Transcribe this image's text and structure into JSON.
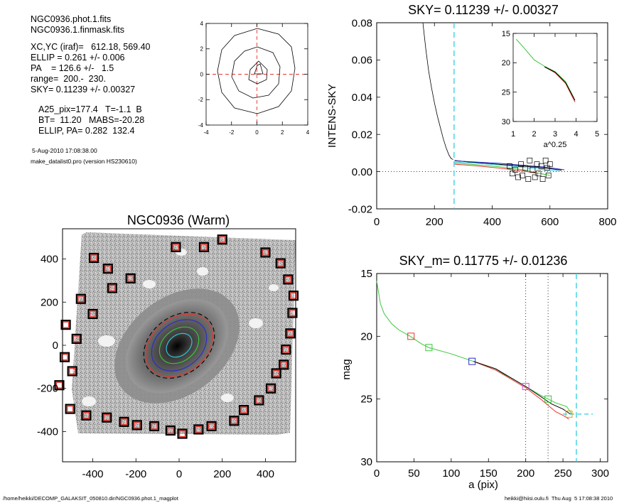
{
  "info_block": {
    "line1": "NGC0936.phot.1.fits",
    "line2": "NGC0936.1.finmask.fits",
    "line3": "XC,YC (iraf)=   612.18, 569.40",
    "line4": "ELLIP = 0.261 +/- 0.006",
    "line5": "PA    = 126.6 +/-   1.5",
    "line6": "range=  200.-  230.",
    "line7": "SKY= 0.11239 +/- 0.00327",
    "line8": "A25_pix=177.4   T=-1.1  B",
    "line9": "BT=  11.20   MABS=-20.28",
    "line10": "ELLIP, PA= 0.282  132.4",
    "timestamp": "5-Aug-2010 17:08:38.00",
    "program": "make_datalist0.pro (version HS230610)"
  },
  "footer": {
    "path": "/home/heikki/DECOMP_GALAKSIT_050810.dir/NGC0936.phot.1_magplot",
    "user_date": "heikki@hiisi.oulu.fi  Thu Aug  5 17:08:38 2010"
  },
  "colors": {
    "red": "#e8332b",
    "green": "#3bc83b",
    "blue": "#2a2ad0",
    "cyan": "#2ecfe0",
    "magenta": "#d050d0",
    "black": "#000000",
    "gray": "#9a9a9a"
  },
  "chart_data": [
    {
      "id": "contour",
      "type": "contour",
      "title": "",
      "xticks": [
        "-4",
        "-2",
        "0",
        "2",
        "4"
      ],
      "yticks": [
        "-4",
        "-2",
        "0",
        "2",
        "4"
      ],
      "xlim": [
        -4,
        4
      ],
      "ylim": [
        -4,
        4
      ]
    },
    {
      "id": "sky",
      "type": "line",
      "title": "SKY= 0.11239 +/- 0.00327",
      "xlabel": "",
      "ylabel": "INTENS-SKY",
      "xlim": [
        0,
        800
      ],
      "ylim": [
        -0.02,
        0.08
      ],
      "xticks": [
        "0",
        "200",
        "400",
        "600",
        "800"
      ],
      "yticks": [
        "-0.02",
        "0.00",
        "0.02",
        "0.04",
        "0.06",
        "0.08"
      ],
      "range_vline": 268,
      "profile": [
        [
          160,
          0.08
        ],
        [
          170,
          0.066
        ],
        [
          180,
          0.054
        ],
        [
          190,
          0.045
        ],
        [
          200,
          0.037
        ],
        [
          210,
          0.03
        ],
        [
          220,
          0.024
        ],
        [
          230,
          0.018
        ],
        [
          240,
          0.013
        ],
        [
          250,
          0.009
        ],
        [
          258,
          0.007
        ],
        [
          265,
          0.0065
        ]
      ],
      "series": [
        {
          "color": "black",
          "values": [
            [
              270,
              0.006
            ],
            [
              330,
              0.005
            ],
            [
              400,
              0.0042
            ],
            [
              460,
              0.0035
            ],
            [
              520,
              0.0028
            ],
            [
              580,
              0.002
            ],
            [
              640,
              0.0008
            ]
          ]
        },
        {
          "color": "blue",
          "values": [
            [
              270,
              0.0058
            ],
            [
              340,
              0.0052
            ],
            [
              420,
              0.0045
            ],
            [
              500,
              0.0035
            ],
            [
              580,
              0.0025
            ],
            [
              650,
              0.001
            ]
          ]
        },
        {
          "color": "cyan",
          "values": [
            [
              270,
              0.0052
            ],
            [
              340,
              0.0046
            ],
            [
              420,
              0.0036
            ],
            [
              500,
              0.0024
            ],
            [
              580,
              0.001
            ],
            [
              630,
              0.0003
            ]
          ]
        },
        {
          "color": "green",
          "values": [
            [
              270,
              0.0046
            ],
            [
              340,
              0.0038
            ],
            [
              420,
              0.0027
            ],
            [
              500,
              0.0012
            ],
            [
              560,
              -0.0008
            ],
            [
              600,
              -0.002
            ]
          ]
        },
        {
          "color": "red",
          "values": [
            [
              270,
              0.004
            ],
            [
              340,
              0.0032
            ],
            [
              420,
              0.002
            ],
            [
              500,
              0.0005
            ],
            [
              560,
              -0.001
            ]
          ]
        }
      ],
      "squares": [
        [
          460,
          0.003
        ],
        [
          470,
          -0.001
        ],
        [
          480,
          0.001
        ],
        [
          490,
          -0.003
        ],
        [
          500,
          0.004
        ],
        [
          505,
          -0.002
        ],
        [
          515,
          0.002
        ],
        [
          525,
          -0.004
        ],
        [
          530,
          0.006
        ],
        [
          540,
          0.001
        ],
        [
          548,
          -0.003
        ],
        [
          555,
          0.004
        ],
        [
          560,
          -0.001
        ],
        [
          570,
          0.003
        ],
        [
          575,
          -0.004
        ],
        [
          585,
          0.006
        ],
        [
          590,
          0.002
        ],
        [
          595,
          -0.002
        ],
        [
          600,
          0.004
        ]
      ],
      "inset": {
        "xlabel": "a^0.25",
        "xlim": [
          1,
          5
        ],
        "ylim": [
          15,
          30
        ],
        "xticks": [
          "1",
          "2",
          "3",
          "4",
          "5"
        ],
        "yticks": [
          "15",
          "20",
          "25",
          "30"
        ],
        "series": [
          {
            "color": "green",
            "values": [
              [
                1.15,
                16.0
              ],
              [
                1.5,
                17.4
              ],
              [
                2.0,
                19.5
              ],
              [
                2.5,
                20.6
              ],
              [
                3.0,
                21.5
              ],
              [
                3.5,
                23.2
              ],
              [
                3.9,
                26.0
              ]
            ]
          },
          {
            "color": "red",
            "values": [
              [
                2.5,
                20.7
              ],
              [
                3.0,
                21.7
              ],
              [
                3.5,
                23.5
              ],
              [
                3.95,
                26.7
              ]
            ]
          },
          {
            "color": "black",
            "values": [
              [
                2.5,
                20.7
              ],
              [
                3.0,
                21.6
              ],
              [
                3.5,
                23.4
              ],
              [
                3.95,
                26.4
              ]
            ]
          }
        ]
      }
    },
    {
      "id": "image",
      "type": "image",
      "title": "NGC0936 (Warm)",
      "xlim": [
        -540,
        540
      ],
      "ylim": [
        -540,
        540
      ],
      "xticks": [
        "-400",
        "-200",
        "0",
        "200",
        "400"
      ],
      "yticks": [
        "-400",
        "-200",
        "0",
        "200",
        "400"
      ],
      "sky_boxes": [
        [
          -15,
          455
        ],
        [
          -395,
          405
        ],
        [
          -330,
          355
        ],
        [
          -225,
          310
        ],
        [
          -310,
          265
        ],
        [
          -455,
          215
        ],
        [
          -400,
          145
        ],
        [
          -525,
          95
        ],
        [
          -475,
          30
        ],
        [
          -530,
          -55
        ],
        [
          -495,
          -120
        ],
        [
          -555,
          -185
        ],
        [
          -505,
          -295
        ],
        [
          -430,
          -325
        ],
        [
          -335,
          -335
        ],
        [
          -255,
          -355
        ],
        [
          -195,
          -370
        ],
        [
          -115,
          -375
        ],
        [
          -40,
          -395
        ],
        [
          15,
          -410
        ],
        [
          90,
          -390
        ],
        [
          150,
          -375
        ],
        [
          255,
          -350
        ],
        [
          300,
          -300
        ],
        [
          370,
          -255
        ],
        [
          425,
          -200
        ],
        [
          450,
          -130
        ],
        [
          485,
          -90
        ],
        [
          495,
          -20
        ],
        [
          515,
          55
        ],
        [
          525,
          150
        ],
        [
          530,
          230
        ],
        [
          505,
          305
        ],
        [
          470,
          380
        ],
        [
          400,
          430
        ],
        [
          200,
          490
        ],
        [
          115,
          455
        ]
      ],
      "isophotes": [
        {
          "color": "cyan",
          "a": 65,
          "b": 48
        },
        {
          "color": "green",
          "a": 100,
          "b": 74
        },
        {
          "color": "blue",
          "a": 140,
          "b": 104
        },
        {
          "color": "red",
          "a": 170,
          "b": 126
        },
        {
          "color": "black",
          "a": 180,
          "b": 133
        }
      ]
    },
    {
      "id": "mag",
      "type": "line",
      "title": "SKY_m=  0.11775 +/- 0.01236",
      "xlabel": "a (pix)",
      "ylabel": "mag",
      "xlim": [
        0,
        310
      ],
      "ylim": [
        15,
        30
      ],
      "xticks": [
        "0",
        "50",
        "100",
        "150",
        "200",
        "250",
        "300"
      ],
      "yticks": [
        "15",
        "20",
        "25",
        "30"
      ],
      "dotted_vlines": [
        200,
        230
      ],
      "dashed_vline": 268,
      "series": [
        {
          "color": "green",
          "values": [
            [
              0,
              15.6
            ],
            [
              5,
              17.4
            ],
            [
              10,
              18.2
            ],
            [
              20,
              19.0
            ],
            [
              30,
              19.5
            ],
            [
              45,
              20.0
            ],
            [
              60,
              20.6
            ],
            [
              70,
              20.9
            ],
            [
              100,
              21.4
            ],
            [
              130,
              22.0
            ],
            [
              160,
              22.7
            ],
            [
              180,
              23.3
            ],
            [
              200,
              24.0
            ],
            [
              220,
              24.7
            ],
            [
              240,
              25.3
            ],
            [
              255,
              25.6
            ],
            [
              262,
              26.2
            ]
          ]
        },
        {
          "color": "red",
          "values": [
            [
              130,
              22.0
            ],
            [
              160,
              22.7
            ],
            [
              180,
              23.4
            ],
            [
              200,
              24.1
            ],
            [
              220,
              25.0
            ],
            [
              230,
              25.5
            ],
            [
              240,
              26.0
            ],
            [
              250,
              26.3
            ],
            [
              258,
              26.6
            ]
          ]
        },
        {
          "color": "black",
          "values": [
            [
              130,
              22.0
            ],
            [
              160,
              22.6
            ],
            [
              180,
              23.3
            ],
            [
              200,
              24.0
            ],
            [
              220,
              24.8
            ],
            [
              235,
              25.4
            ],
            [
              250,
              25.8
            ],
            [
              260,
              26.2
            ]
          ]
        }
      ],
      "markers": [
        {
          "color": "red",
          "x": 46,
          "y": 20.0
        },
        {
          "color": "green",
          "x": 70,
          "y": 20.9
        },
        {
          "color": "blue",
          "x": 128,
          "y": 22.0
        },
        {
          "color": "magenta",
          "x": 200,
          "y": 24.0
        },
        {
          "color": "green",
          "x": 230,
          "y": 25.0
        },
        {
          "color": "orange",
          "x": 258,
          "y": 26.2
        }
      ],
      "sky_level": 26.2
    }
  ]
}
